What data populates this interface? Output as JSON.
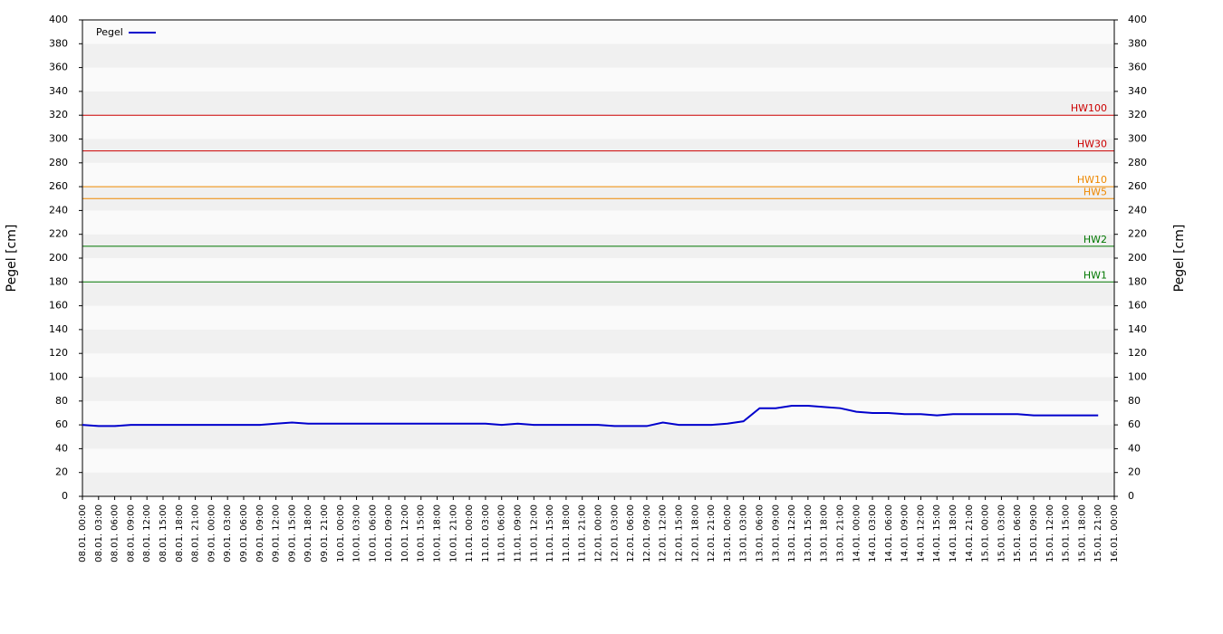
{
  "chart_data": {
    "type": "line",
    "y_label": "Pegel [cm]",
    "categories": [
      "08.01. 00:00",
      "08.01. 03:00",
      "08.01. 06:00",
      "08.01. 09:00",
      "08.01. 12:00",
      "08.01. 15:00",
      "08.01. 18:00",
      "08.01. 21:00",
      "09.01. 00:00",
      "09.01. 03:00",
      "09.01. 06:00",
      "09.01. 09:00",
      "09.01. 12:00",
      "09.01. 15:00",
      "09.01. 18:00",
      "09.01. 21:00",
      "10.01. 00:00",
      "10.01. 03:00",
      "10.01. 06:00",
      "10.01. 09:00",
      "10.01. 12:00",
      "10.01. 15:00",
      "10.01. 18:00",
      "10.01. 21:00",
      "11.01. 00:00",
      "11.01. 03:00",
      "11.01. 06:00",
      "11.01. 09:00",
      "11.01. 12:00",
      "11.01. 15:00",
      "11.01. 18:00",
      "11.01. 21:00",
      "12.01. 00:00",
      "12.01. 03:00",
      "12.01. 06:00",
      "12.01. 09:00",
      "12.01. 12:00",
      "12.01. 15:00",
      "12.01. 18:00",
      "12.01. 21:00",
      "13.01. 00:00",
      "13.01. 03:00",
      "13.01. 06:00",
      "13.01. 09:00",
      "13.01. 12:00",
      "13.01. 15:00",
      "13.01. 18:00",
      "13.01. 21:00",
      "14.01. 00:00",
      "14.01. 03:00",
      "14.01. 06:00",
      "14.01. 09:00",
      "14.01. 12:00",
      "14.01. 15:00",
      "14.01. 18:00",
      "14.01. 21:00",
      "15.01. 00:00",
      "15.01. 03:00",
      "15.01. 06:00",
      "15.01. 09:00",
      "15.01. 12:00",
      "15.01. 15:00",
      "15.01. 18:00",
      "15.01. 21:00",
      "16.01. 00:00"
    ],
    "series": [
      {
        "name": "Pegel",
        "color": "#0000cc",
        "values": [
          60,
          59,
          59,
          60,
          60,
          60,
          60,
          60,
          60,
          60,
          60,
          60,
          61,
          62,
          61,
          61,
          61,
          61,
          61,
          61,
          61,
          61,
          61,
          61,
          61,
          61,
          60,
          61,
          60,
          60,
          60,
          60,
          60,
          59,
          59,
          59,
          62,
          60,
          60,
          60,
          61,
          63,
          74,
          74,
          76,
          76,
          75,
          74,
          71,
          70,
          70,
          69,
          69,
          68,
          69,
          69,
          69,
          69,
          69,
          68,
          68,
          68,
          68,
          68,
          null
        ]
      }
    ],
    "thresholds": [
      {
        "name": "HW100",
        "value": 320,
        "color": "#cc0000"
      },
      {
        "name": "HW30",
        "value": 290,
        "color": "#cc0000"
      },
      {
        "name": "HW10",
        "value": 260,
        "color": "#ee8800"
      },
      {
        "name": "HW5",
        "value": 250,
        "color": "#ee8800"
      },
      {
        "name": "HW2",
        "value": 210,
        "color": "#007700"
      },
      {
        "name": "HW1",
        "value": 180,
        "color": "#007700"
      }
    ],
    "ylim": [
      0,
      400
    ],
    "yticks": [
      0,
      20,
      40,
      60,
      80,
      100,
      120,
      140,
      160,
      180,
      200,
      220,
      240,
      260,
      280,
      300,
      320,
      340,
      360,
      380,
      400
    ],
    "y2lim": [
      0,
      400
    ],
    "y2ticks": [
      0,
      20,
      40,
      60,
      80,
      100,
      120,
      140,
      160,
      180,
      200,
      220,
      240,
      260,
      280,
      300,
      320,
      340,
      360,
      380,
      400
    ],
    "bands": true,
    "legend": "upper left"
  }
}
